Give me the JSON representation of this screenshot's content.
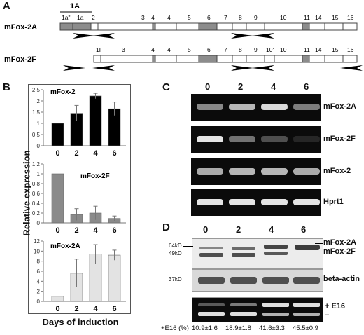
{
  "panel_a": {
    "letter": "A",
    "label_1a_group": "1A",
    "row1": {
      "name": "mFox-2A",
      "exons": [
        "1a\"",
        "1a",
        "2",
        "3",
        "4'",
        "4",
        "5",
        "6",
        "7",
        "8",
        "9",
        "10",
        "11",
        "14",
        "15",
        "16"
      ]
    },
    "row2": {
      "name": "mFox-2F",
      "exons": [
        "1F",
        "3",
        "4'",
        "4",
        "5",
        "6",
        "7",
        "8",
        "9",
        "10'",
        "10",
        "11",
        "14",
        "15",
        "16"
      ]
    }
  },
  "panel_b": {
    "letter": "B",
    "ylabel": "Relative expression",
    "xlabel": "Days of induction",
    "chart_data": [
      {
        "type": "bar",
        "title": "mFox-2",
        "categories": [
          "0",
          "2",
          "4",
          "6"
        ],
        "values": [
          1.0,
          1.45,
          2.22,
          1.65
        ],
        "errors": [
          0,
          0.35,
          0.12,
          0.3
        ],
        "ylim": [
          0,
          2.5
        ],
        "yticks": [
          "0",
          "0.5",
          "1",
          "1.5",
          "2",
          "2.5"
        ],
        "color": "#000000"
      },
      {
        "type": "bar",
        "title": "mFox-2F",
        "categories": [
          "0",
          "2",
          "4",
          "6"
        ],
        "values": [
          1.0,
          0.17,
          0.2,
          0.09
        ],
        "errors": [
          0,
          0.12,
          0.14,
          0.05
        ],
        "ylim": [
          0,
          1.2
        ],
        "yticks": [
          "0",
          "0.2",
          "0.4",
          "0.6",
          "0.8",
          "1",
          "1.2"
        ],
        "color": "#8a8a8a"
      },
      {
        "type": "bar",
        "title": "mFox-2A",
        "categories": [
          "0",
          "2",
          "4",
          "6"
        ],
        "values": [
          1.0,
          5.6,
          9.4,
          9.2
        ],
        "errors": [
          0,
          2.8,
          1.9,
          1.0
        ],
        "ylim": [
          0,
          12
        ],
        "yticks": [
          "0",
          "2",
          "4",
          "6",
          "8",
          "10",
          "12"
        ],
        "color": "#e3e3e3"
      }
    ]
  },
  "panel_c": {
    "letter": "C",
    "days": [
      "0",
      "2",
      "4",
      "6"
    ],
    "rows": [
      {
        "label": "mFox-2A",
        "intensity": [
          0.55,
          0.75,
          0.9,
          0.5
        ]
      },
      {
        "label": "mFox-2F",
        "intensity": [
          0.95,
          0.45,
          0.3,
          0.12
        ]
      },
      {
        "label": "mFox-2",
        "intensity": [
          0.7,
          0.75,
          0.75,
          0.7
        ]
      },
      {
        "label": "Hprt1",
        "intensity": [
          0.95,
          0.95,
          0.95,
          0.95
        ]
      }
    ]
  },
  "panel_d": {
    "letter": "D",
    "days": [
      "0",
      "2",
      "4",
      "6"
    ],
    "marker_64": "64kD",
    "marker_49": "49kD",
    "marker_37": "37kD",
    "blot_label_a": "mFox-2A",
    "blot_label_f": "mFox-2F",
    "actin_label": "beta-actin",
    "gel_plus_label": "+ E16",
    "gel_minus_label": "−",
    "e16_prefix": "+E16 (%)",
    "e16_values": [
      "10.9±1.6",
      "18.9±1.8",
      "41.6±3.3",
      "45.5±0.9"
    ]
  }
}
